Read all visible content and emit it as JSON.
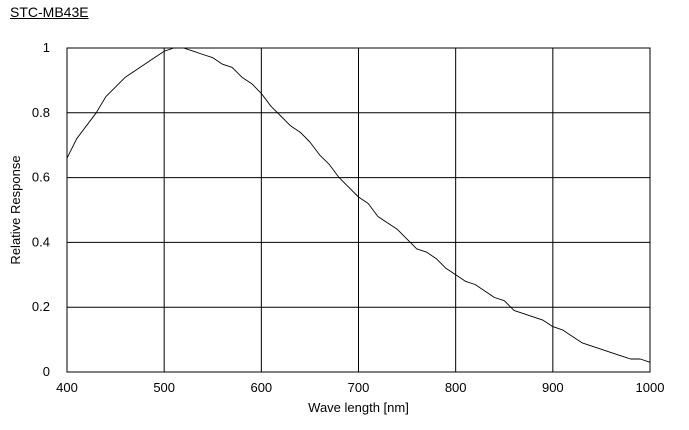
{
  "chart_data": {
    "type": "line",
    "title": "STC-MB43E",
    "xlabel": "Wave length [nm]",
    "ylabel": "Relative Response",
    "xlim": [
      400,
      1000
    ],
    "ylim": [
      0,
      1
    ],
    "x_ticks": [
      400,
      500,
      600,
      700,
      800,
      900,
      1000
    ],
    "y_ticks": [
      0,
      0.2,
      0.4,
      0.6,
      0.8,
      1
    ],
    "y_tick_labels": [
      "0",
      "0.2",
      "0.4",
      "0.6",
      "0.8",
      "1"
    ],
    "grid": true,
    "legend": "none",
    "line_color": "#000000",
    "series": [
      {
        "x": [
          400,
          410,
          420,
          430,
          440,
          450,
          460,
          470,
          480,
          490,
          500,
          510,
          520,
          530,
          540,
          550,
          560,
          570,
          580,
          590,
          600,
          610,
          620,
          630,
          640,
          650,
          660,
          670,
          680,
          690,
          700,
          710,
          720,
          730,
          740,
          750,
          760,
          770,
          780,
          790,
          800,
          810,
          820,
          830,
          840,
          850,
          860,
          870,
          880,
          890,
          900,
          910,
          920,
          930,
          940,
          950,
          960,
          970,
          980,
          990,
          1000
        ],
        "y": [
          0.66,
          0.72,
          0.76,
          0.8,
          0.85,
          0.88,
          0.91,
          0.93,
          0.95,
          0.97,
          0.99,
          1.0,
          1.0,
          0.99,
          0.98,
          0.97,
          0.95,
          0.94,
          0.91,
          0.89,
          0.86,
          0.82,
          0.79,
          0.76,
          0.74,
          0.71,
          0.67,
          0.64,
          0.6,
          0.57,
          0.54,
          0.52,
          0.48,
          0.46,
          0.44,
          0.41,
          0.38,
          0.37,
          0.35,
          0.32,
          0.3,
          0.28,
          0.27,
          0.25,
          0.23,
          0.22,
          0.19,
          0.18,
          0.17,
          0.16,
          0.14,
          0.13,
          0.11,
          0.09,
          0.08,
          0.07,
          0.06,
          0.05,
          0.04,
          0.04,
          0.03
        ]
      }
    ]
  }
}
